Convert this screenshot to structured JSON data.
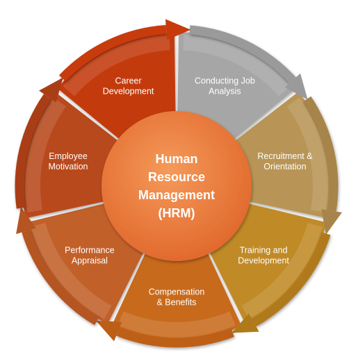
{
  "center": {
    "lines": [
      "Human",
      "Resource",
      "Management",
      "(HRM)"
    ],
    "color": "#ef7a3a"
  },
  "segments": [
    {
      "lines": [
        "Conducting Job",
        "Analysis"
      ],
      "color": "#a6a6a6",
      "arrow_color": "#9a9a9a"
    },
    {
      "lines": [
        "Recruitment &",
        "Orientation"
      ],
      "color": "#b89556",
      "arrow_color": "#a7844a"
    },
    {
      "lines": [
        "Training and",
        "Development"
      ],
      "color": "#c08a27",
      "arrow_color": "#b07a1a"
    },
    {
      "lines": [
        "Compensation",
        "& Benefits"
      ],
      "color": "#c86a1e",
      "arrow_color": "#bd5e16"
    },
    {
      "lines": [
        "Performance",
        "Appraisal"
      ],
      "color": "#c2612a",
      "arrow_color": "#b55522"
    },
    {
      "lines": [
        "Employee",
        "Motivation"
      ],
      "color": "#b84a1e",
      "arrow_color": "#a93e16"
    },
    {
      "lines": [
        "Career",
        "Development"
      ],
      "color": "#c33a10",
      "arrow_color": "#c73a0c"
    }
  ]
}
